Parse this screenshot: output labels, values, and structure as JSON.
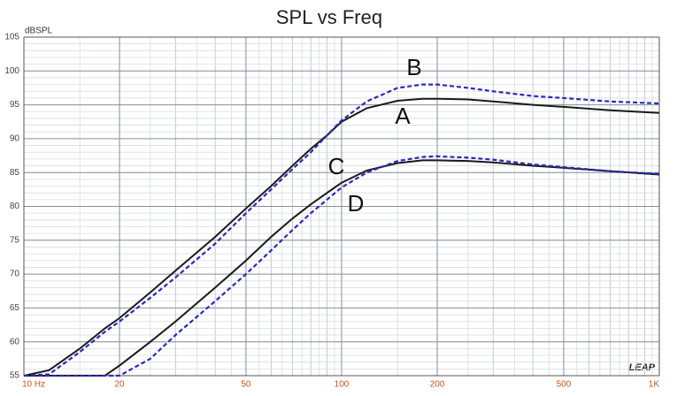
{
  "chart_data": {
    "type": "line",
    "title": "SPL vs Freq",
    "y_axis_label": "dBSPL",
    "logo": "LEAP",
    "x_log": true,
    "grid": true,
    "xlim": [
      10,
      1000
    ],
    "ylim": [
      55,
      105
    ],
    "xticks": [
      {
        "value": 10,
        "label": "10 Hz"
      },
      20,
      50,
      100,
      200,
      500,
      {
        "value": 1000,
        "label": "1K"
      }
    ],
    "yticks": [
      55,
      60,
      65,
      70,
      75,
      80,
      85,
      90,
      95,
      100,
      105
    ],
    "x": [
      10,
      12,
      15,
      18,
      20,
      25,
      30,
      40,
      50,
      60,
      70,
      80,
      90,
      100,
      120,
      150,
      180,
      200,
      250,
      300,
      400,
      500,
      700,
      1000
    ],
    "series": [
      {
        "name": "A",
        "color": "#1a1a1a",
        "dash": false,
        "values": [
          55,
          55.8,
          59,
          62,
          63.5,
          67.3,
          70.5,
          75.5,
          79.7,
          83,
          86,
          88.5,
          90.5,
          92.5,
          94.5,
          95.6,
          95.9,
          95.9,
          95.8,
          95.5,
          95,
          94.7,
          94.2,
          93.8
        ]
      },
      {
        "name": "B",
        "color": "#2a2ab8",
        "dash": true,
        "values": [
          55,
          55.2,
          58.5,
          61.5,
          63,
          66.5,
          69.5,
          74.5,
          79,
          82.5,
          85.5,
          88,
          90.5,
          92.7,
          95.5,
          97.5,
          98,
          98,
          97.5,
          97,
          96.3,
          96,
          95.5,
          95.2
        ]
      },
      {
        "name": "C",
        "color": "#1a1a1a",
        "dash": false,
        "values": [
          55,
          55,
          55,
          55,
          56.5,
          60,
          63,
          68,
          72,
          75.5,
          78.2,
          80.3,
          82,
          83.5,
          85.3,
          86.4,
          86.8,
          86.8,
          86.7,
          86.5,
          86,
          85.7,
          85.2,
          84.7
        ]
      },
      {
        "name": "D",
        "color": "#2a2ab8",
        "dash": true,
        "values": [
          55,
          55,
          55,
          55,
          55,
          57.5,
          61,
          66,
          70,
          73.5,
          76.5,
          79,
          81,
          82.8,
          85,
          86.7,
          87.3,
          87.4,
          87.2,
          86.9,
          86.2,
          85.8,
          85.2,
          84.8
        ]
      }
    ]
  }
}
